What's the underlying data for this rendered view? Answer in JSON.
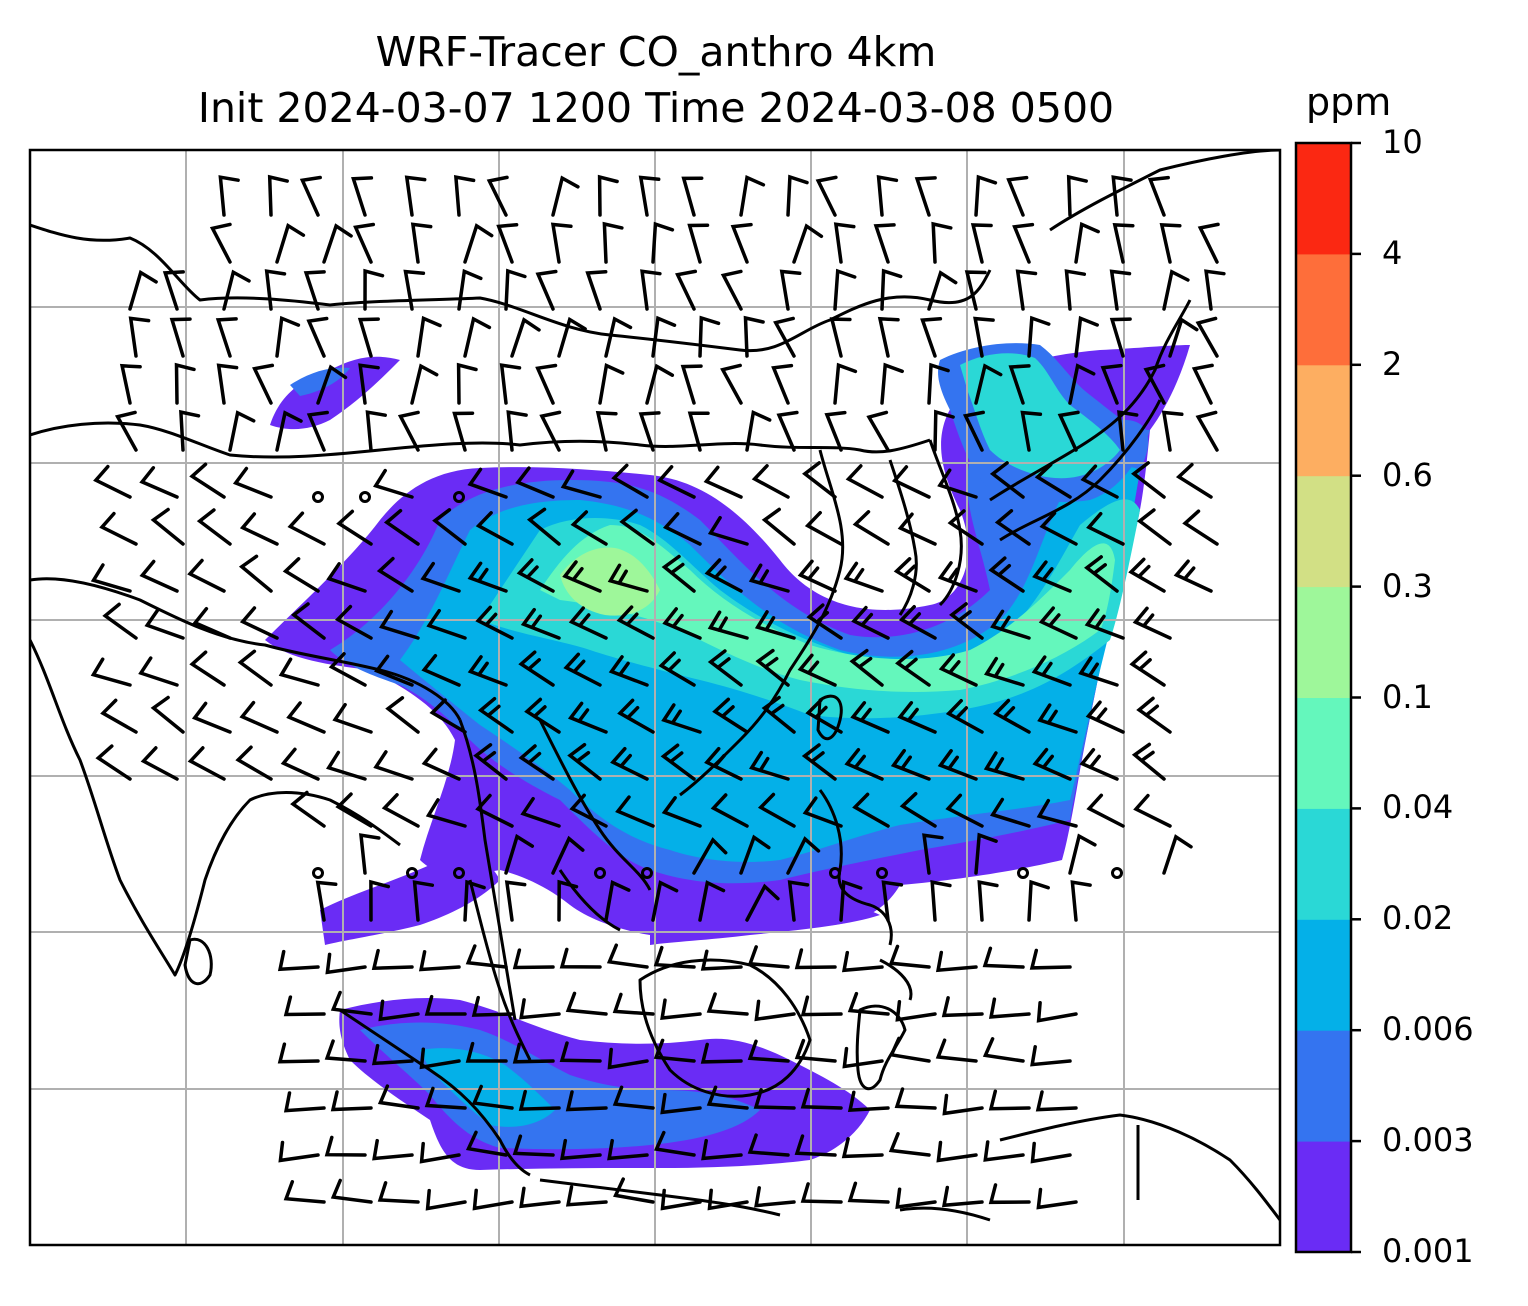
{
  "title": {
    "line1": "WRF-Tracer CO_anthro 4km",
    "line2": "Init 2024-03-07 1200 Time 2024-03-08 0500"
  },
  "colorbar": {
    "unit": "ppm",
    "levels": [
      "0.001",
      "0.003",
      "0.006",
      "0.02",
      "0.04",
      "0.1",
      "0.3",
      "0.6",
      "2",
      "4",
      "10"
    ],
    "colors": [
      "#6a2cf5",
      "#3474f0",
      "#04b0e8",
      "#2ad8d6",
      "#64f7bc",
      "#9ef79a",
      "#d2e085",
      "#fdae61",
      "#fe6e3a",
      "#fb2812"
    ]
  },
  "map": {
    "gridlines": true,
    "projection": "PlateCarree",
    "frame_color": "#000000",
    "grid_color": "#b0b0b0",
    "coastline_color": "#000000"
  }
}
